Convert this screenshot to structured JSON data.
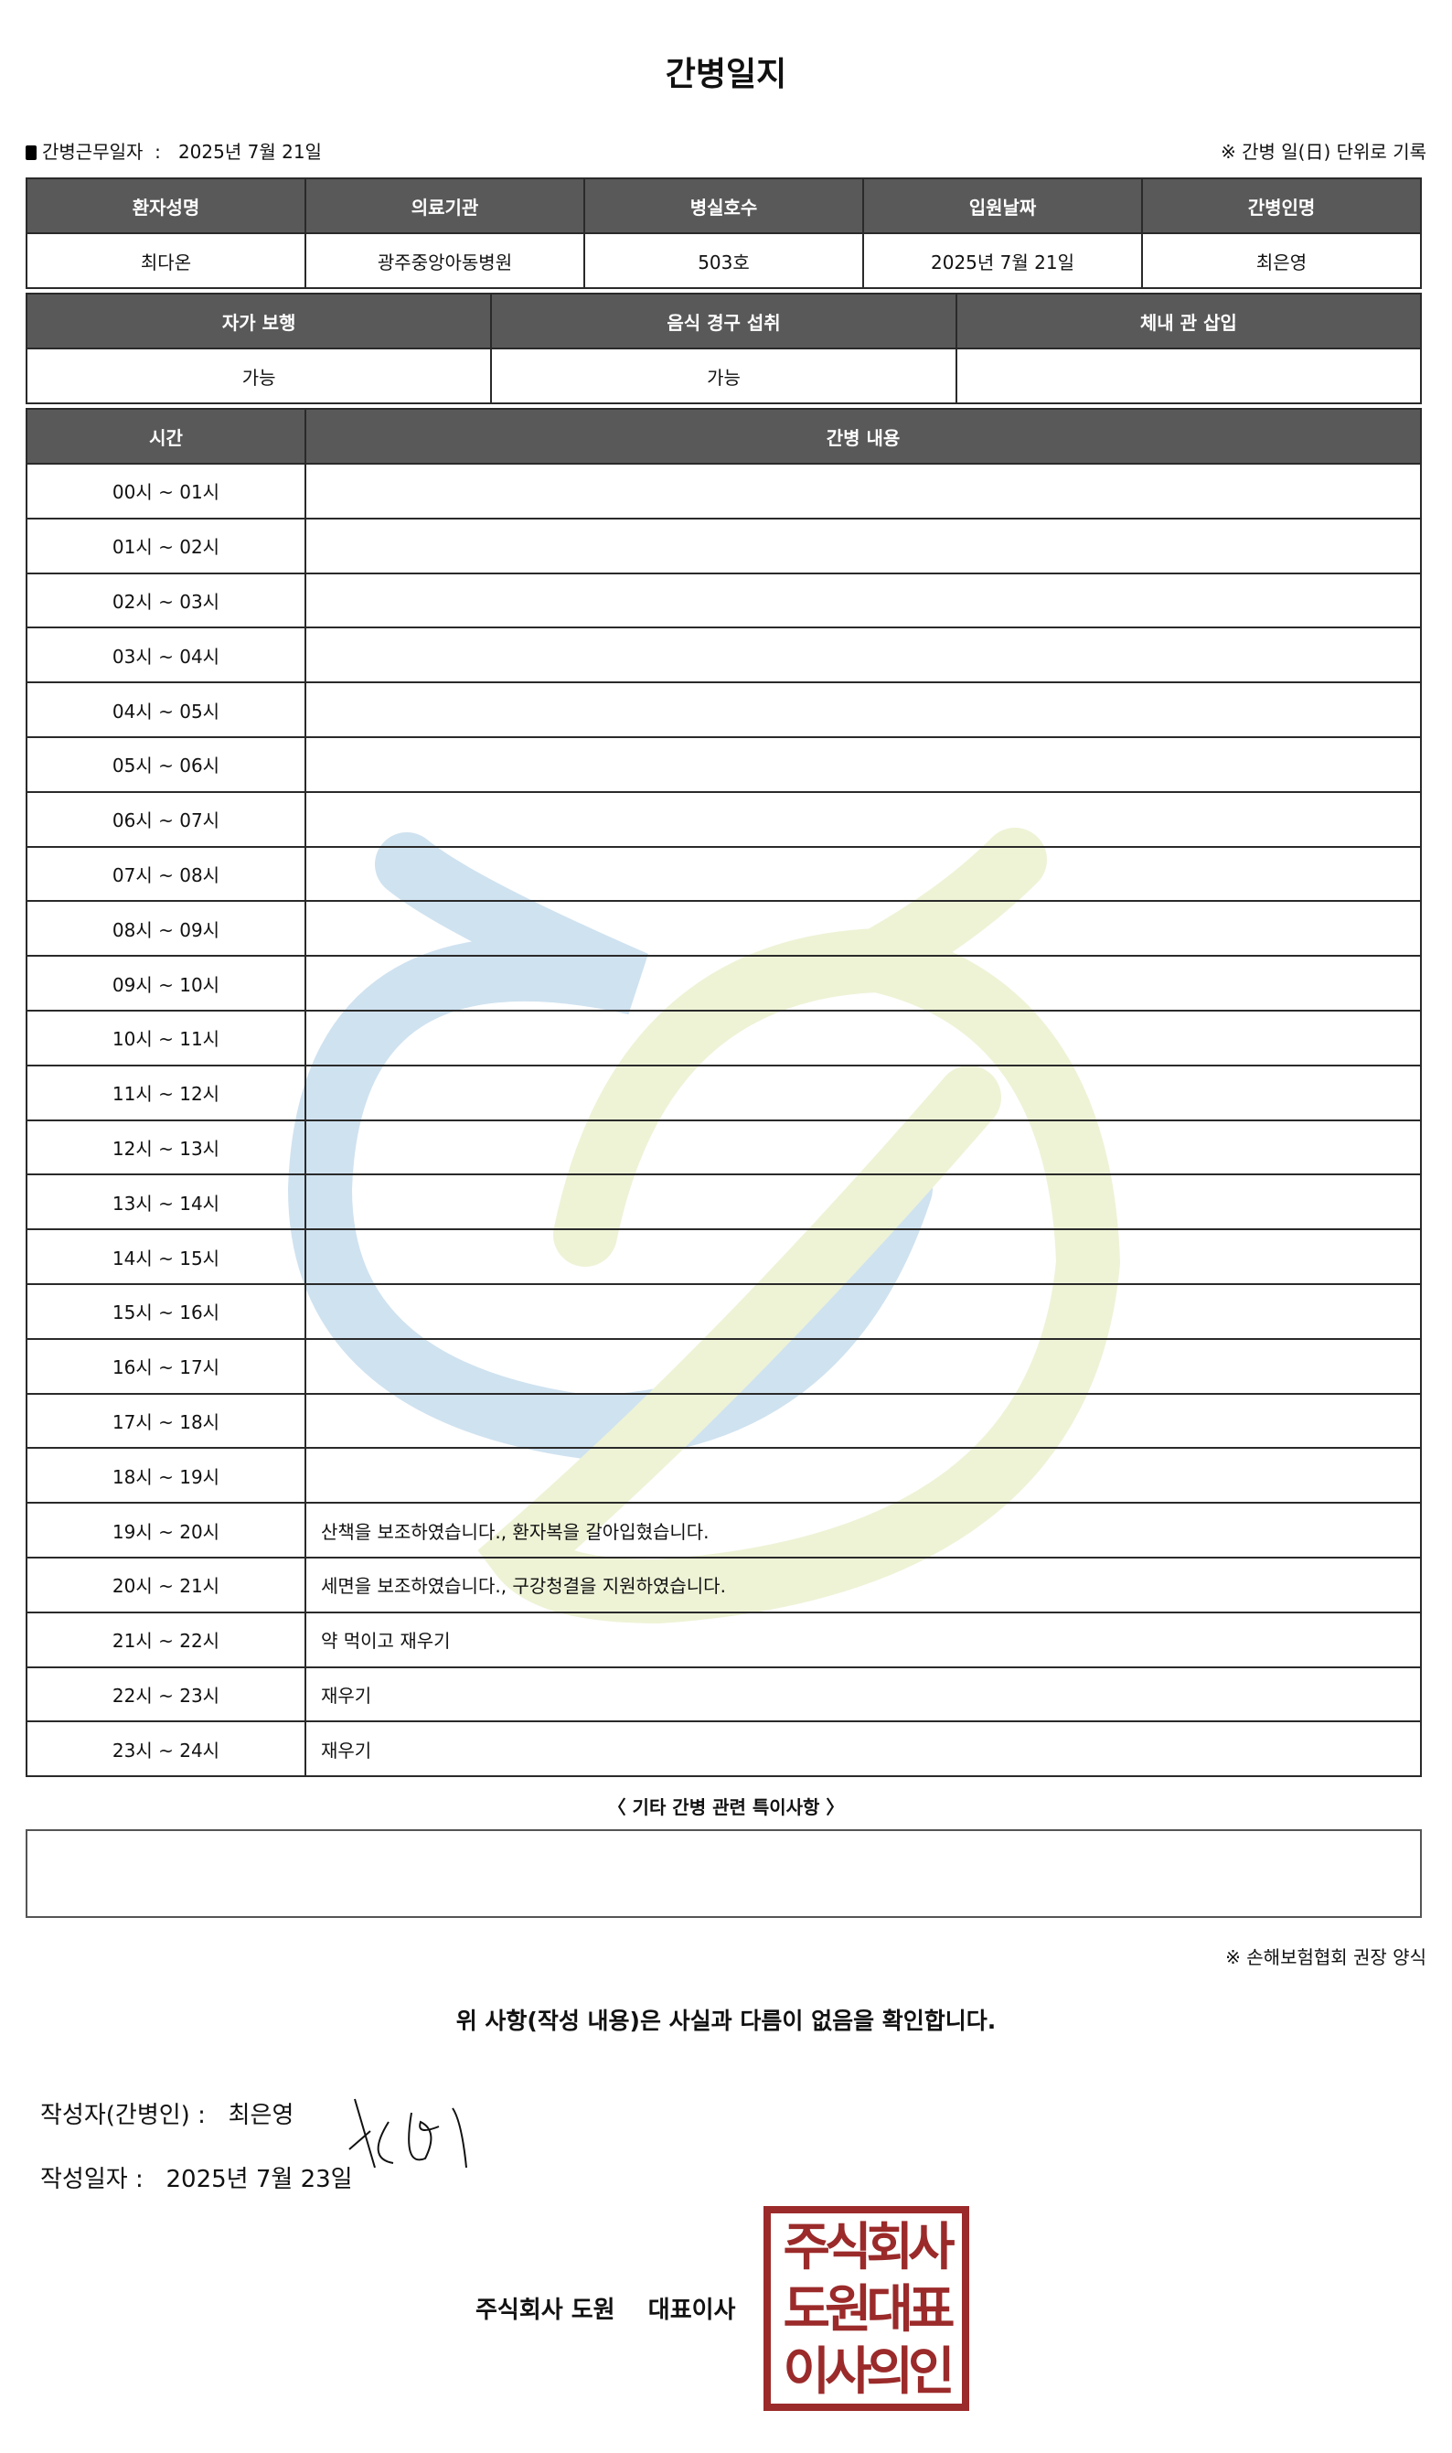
{
  "title": "간병일지",
  "info": {
    "work_date_label": "간병근무일자",
    "separator": ":",
    "work_date": "2025년 7월 21일",
    "note": "※ 간병 일(日) 단위로 기록"
  },
  "patient_table": {
    "headers": [
      "환자성명",
      "의료기관",
      "병실호수",
      "입원날짜",
      "간병인명"
    ],
    "values": [
      "최다온",
      "광주중앙아동병원",
      "503호",
      "2025년 7월 21일",
      "최은영"
    ]
  },
  "status_table": {
    "headers": [
      "자가 보행",
      "음식 경구 섭취",
      "체내 관 삽입"
    ],
    "values": [
      "가능",
      "가능",
      ""
    ]
  },
  "log_table": {
    "headers": [
      "시간",
      "간병 내용"
    ],
    "rows": [
      {
        "time": "00시 ~ 01시",
        "content": ""
      },
      {
        "time": "01시 ~ 02시",
        "content": ""
      },
      {
        "time": "02시 ~ 03시",
        "content": ""
      },
      {
        "time": "03시 ~ 04시",
        "content": ""
      },
      {
        "time": "04시 ~ 05시",
        "content": ""
      },
      {
        "time": "05시 ~ 06시",
        "content": ""
      },
      {
        "time": "06시 ~ 07시",
        "content": ""
      },
      {
        "time": "07시 ~ 08시",
        "content": ""
      },
      {
        "time": "08시 ~ 09시",
        "content": ""
      },
      {
        "time": "09시 ~ 10시",
        "content": ""
      },
      {
        "time": "10시 ~ 11시",
        "content": ""
      },
      {
        "time": "11시 ~ 12시",
        "content": ""
      },
      {
        "time": "12시 ~ 13시",
        "content": ""
      },
      {
        "time": "13시 ~ 14시",
        "content": ""
      },
      {
        "time": "14시 ~ 15시",
        "content": ""
      },
      {
        "time": "15시 ~ 16시",
        "content": ""
      },
      {
        "time": "16시 ~ 17시",
        "content": ""
      },
      {
        "time": "17시 ~ 18시",
        "content": ""
      },
      {
        "time": "18시 ~ 19시",
        "content": ""
      },
      {
        "time": "19시 ~ 20시",
        "content": "산책을 보조하였습니다., 환자복을 갈아입혔습니다."
      },
      {
        "time": "20시 ~ 21시",
        "content": "세면을 보조하였습니다., 구강청결을 지원하였습니다."
      },
      {
        "time": "21시 ~ 22시",
        "content": "약 먹이고 재우기"
      },
      {
        "time": "22시 ~ 23시",
        "content": "재우기"
      },
      {
        "time": "23시 ~ 24시",
        "content": "재우기"
      }
    ]
  },
  "notes": {
    "label": "〈 기타 간병 관련 특이사항 〉",
    "value": ""
  },
  "form_note": "※ 손해보험협회 권장 양식",
  "confirmation": "위 사항(작성 내용)은 사실과 다름이 없음을 확인합니다.",
  "writer": {
    "label": "작성자(간병인) :",
    "name": "최은영"
  },
  "written_date": {
    "label": "작성일자 :",
    "value": "2025년 7월 23일"
  },
  "company": {
    "name": "주식회사 도원",
    "title": "대표이사"
  },
  "stamp_text": "주식회사도원대표이사의인",
  "colors": {
    "header_bg": "#595959",
    "stamp": "#9b2a2a",
    "watermark_blue": "#cfe2f0",
    "watermark_green": "#eef3d6"
  }
}
